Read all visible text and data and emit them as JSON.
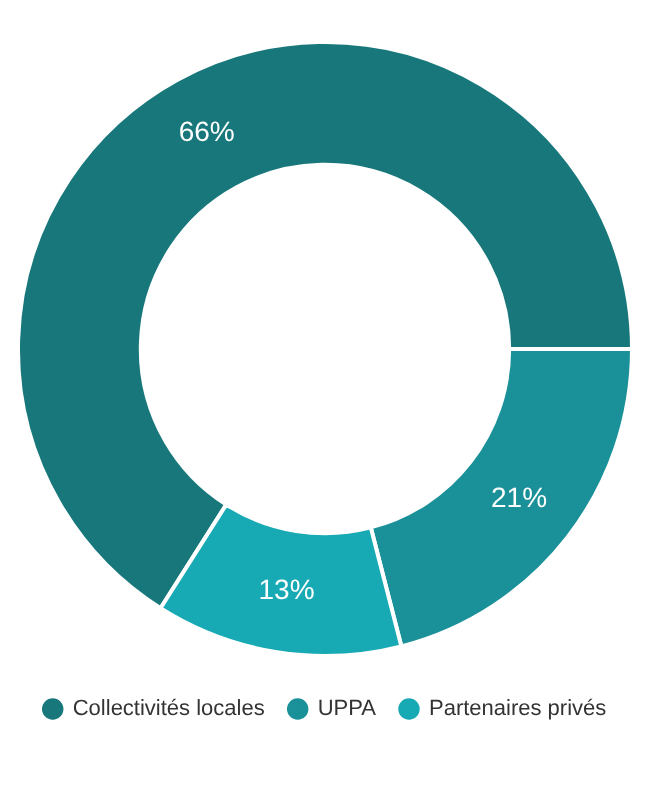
{
  "chart_data": {
    "type": "donut",
    "categories": [
      "Collectivités locales",
      "UPPA",
      "Partenaires privés"
    ],
    "values": [
      66,
      21,
      13
    ],
    "colors": [
      "#17777a",
      "#1a9199",
      "#17aab5"
    ],
    "value_labels": [
      "66%",
      "21%",
      "13%"
    ],
    "legend": "bottom"
  }
}
